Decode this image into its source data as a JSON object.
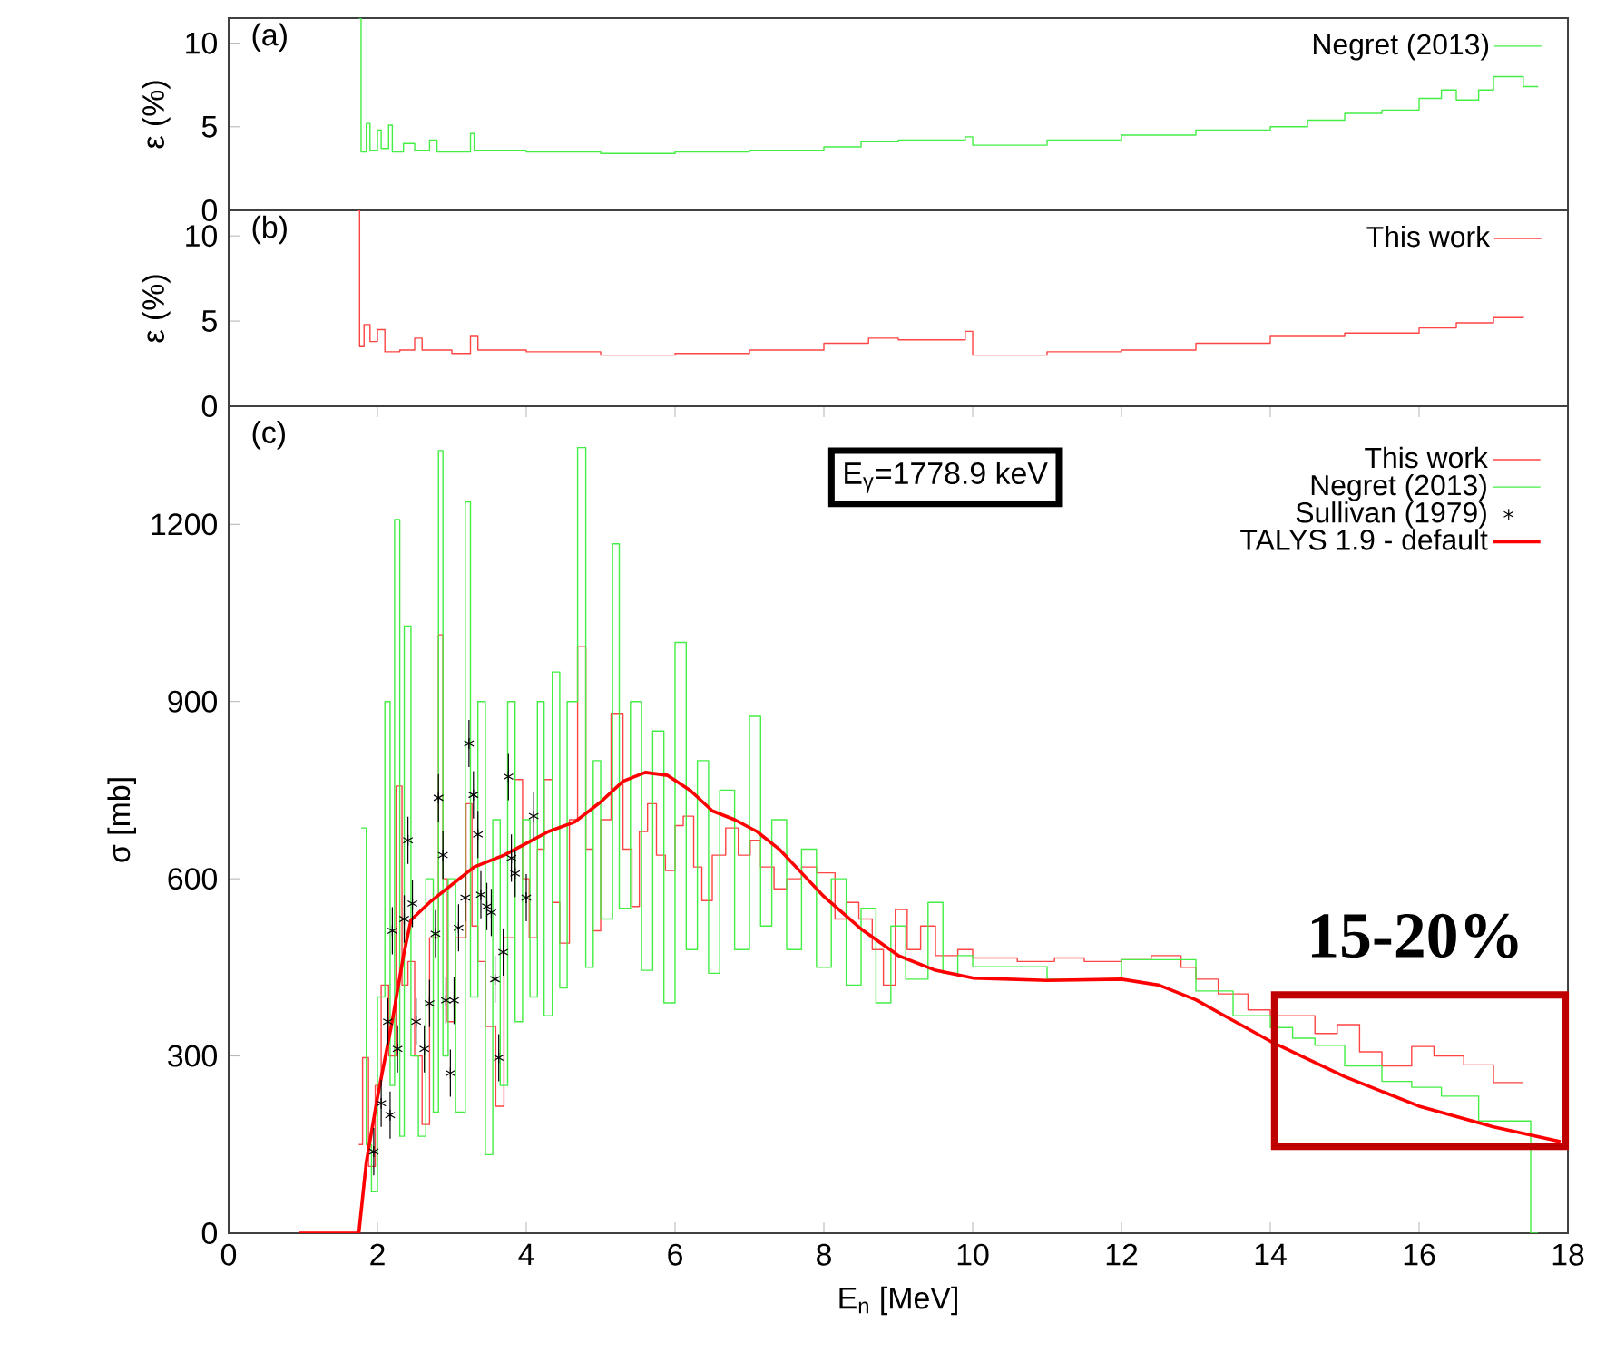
{
  "chart_data": [
    {
      "type": "step",
      "annotations": [
        "(a)"
      ],
      "ylabel": "ε (%)",
      "xlim": [
        0,
        18
      ],
      "ylim": [
        0,
        11.5
      ],
      "yticks": [
        0,
        5,
        10
      ],
      "tick_labels": "y",
      "legend": "top right",
      "series": [
        {
          "name": "Negret (2013)",
          "color": "#44ee44",
          "x": [
            1.75,
            1.78,
            1.85,
            1.9,
            2.0,
            2.05,
            2.15,
            2.2,
            2.35,
            2.5,
            2.7,
            2.8,
            3.0,
            3.25,
            3.3,
            4,
            4.5,
            5,
            6,
            7,
            8,
            8.5,
            9,
            9.9,
            10,
            11,
            12,
            13,
            14,
            14.5,
            15,
            15.5,
            16,
            16.3,
            16.5,
            16.8,
            17.0,
            17.4,
            17.6
          ],
          "values": [
            11.5,
            3.5,
            5.2,
            3.6,
            4.8,
            3.7,
            5.1,
            3.5,
            4.0,
            3.6,
            4.2,
            3.5,
            3.5,
            4.6,
            3.6,
            3.5,
            3.5,
            3.4,
            3.5,
            3.6,
            3.8,
            4.1,
            4.2,
            4.4,
            3.9,
            4.2,
            4.5,
            4.8,
            5.0,
            5.4,
            5.8,
            6.0,
            6.7,
            7.2,
            6.6,
            7.2,
            8.0,
            7.4,
            7.4
          ]
        }
      ]
    },
    {
      "type": "step",
      "annotations": [
        "(b)"
      ],
      "ylabel": "ε (%)",
      "xlim": [
        0,
        18
      ],
      "ylim": [
        0,
        11.5
      ],
      "yticks": [
        0,
        5,
        10
      ],
      "tick_labels": "y",
      "legend": "top right",
      "series": [
        {
          "name": "This work",
          "color": "#ff4444",
          "x": [
            1.72,
            1.76,
            1.82,
            1.9,
            2.0,
            2.1,
            2.3,
            2.5,
            2.6,
            3,
            3.25,
            3.35,
            4,
            5,
            6,
            7,
            8,
            8.6,
            9,
            9.9,
            10,
            11,
            12,
            13,
            14,
            15,
            16,
            16.5,
            17,
            17.4
          ],
          "values": [
            11.5,
            3.5,
            4.8,
            3.8,
            4.5,
            3.2,
            3.3,
            4.0,
            3.3,
            3.1,
            4.1,
            3.3,
            3.2,
            3.0,
            3.1,
            3.3,
            3.7,
            4.0,
            3.9,
            4.4,
            3.0,
            3.2,
            3.3,
            3.7,
            4.1,
            4.3,
            4.6,
            4.9,
            5.2,
            5.3
          ]
        }
      ]
    },
    {
      "type": "line",
      "annotations": [
        "(c)",
        "E$_{γ}$=1778.9 keV",
        "15-20%"
      ],
      "xlabel": "E$_{n}$ [MeV]",
      "ylabel": "σ [mb]",
      "xlim": [
        0,
        18
      ],
      "ylim": [
        0,
        1400
      ],
      "xticks": [
        0,
        2,
        4,
        6,
        8,
        10,
        12,
        14,
        16,
        18
      ],
      "yticks": [
        0,
        300,
        600,
        900,
        1200
      ],
      "legend": "top right",
      "series": [
        {
          "name": "This work",
          "type": "step",
          "color": "#ff4444",
          "x": [
            1.75,
            1.8,
            1.88,
            1.97,
            2.05,
            2.15,
            2.25,
            2.33,
            2.41,
            2.5,
            2.6,
            2.7,
            2.82,
            2.88,
            2.94,
            3.05,
            3.19,
            3.27,
            3.35,
            3.45,
            3.59,
            3.7,
            3.84,
            3.95,
            4.04,
            4.15,
            4.24,
            4.35,
            4.45,
            4.58,
            4.69,
            4.8,
            4.89,
            5.0,
            5.14,
            5.3,
            5.42,
            5.52,
            5.63,
            5.75,
            5.87,
            6.0,
            6.11,
            6.25,
            6.36,
            6.5,
            6.68,
            6.85,
            7.01,
            7.15,
            7.33,
            7.5,
            7.7,
            7.9,
            8.15,
            8.3,
            8.47,
            8.65,
            8.8,
            8.96,
            9.12,
            9.3,
            9.5,
            9.8,
            10.0,
            10.6,
            11.1,
            11.5,
            12.0,
            12.4,
            12.8,
            13.0,
            13.3,
            13.7,
            14.0,
            14.3,
            14.6,
            14.9,
            15.2,
            15.5,
            15.9,
            16.2,
            16.6,
            17.0,
            17.4
          ],
          "values": [
            150,
            297,
            113,
            250,
            420,
            300,
            757,
            420,
            460,
            300,
            184,
            500,
            1013,
            600,
            358,
            500,
            727,
            520,
            460,
            350,
            215,
            500,
            768,
            600,
            500,
            650,
            768,
            560,
            491,
            700,
            993,
            650,
            512,
            700,
            880,
            650,
            553,
            680,
            727,
            640,
            614,
            690,
            706,
            620,
            563,
            640,
            686,
            640,
            665,
            620,
            583,
            600,
            620,
            610,
            532,
            560,
            532,
            480,
            420,
            548,
            480,
            520,
            470,
            480,
            466,
            460,
            466,
            460,
            463,
            470,
            450,
            430,
            405,
            378,
            368,
            368,
            338,
            353,
            307,
            283,
            316,
            300,
            285,
            255,
            255
          ]
        },
        {
          "name": "Negret (2013)",
          "type": "step",
          "color": "#44ee44",
          "x": [
            1.78,
            1.85,
            1.92,
            2.0,
            2.1,
            2.17,
            2.23,
            2.3,
            2.36,
            2.45,
            2.55,
            2.65,
            2.75,
            2.82,
            2.88,
            2.95,
            3.05,
            3.18,
            3.25,
            3.35,
            3.45,
            3.55,
            3.65,
            3.75,
            3.85,
            3.95,
            4.05,
            4.15,
            4.24,
            4.35,
            4.45,
            4.55,
            4.69,
            4.8,
            4.9,
            5.0,
            5.16,
            5.25,
            5.4,
            5.55,
            5.7,
            5.85,
            6.0,
            6.15,
            6.3,
            6.45,
            6.6,
            6.8,
            7.0,
            7.15,
            7.3,
            7.5,
            7.7,
            7.9,
            8.1,
            8.3,
            8.5,
            8.7,
            8.9,
            9.1,
            9.4,
            9.6,
            9.8,
            10.0,
            11.0,
            12.0,
            12.5,
            13.0,
            13.5,
            14.0,
            14.3,
            14.6,
            15.0,
            15.5,
            15.9,
            16.3,
            16.8,
            17.5,
            17.6
          ],
          "values": [
            686,
            150,
            70,
            400,
            900,
            250,
            1208,
            164,
            1028,
            300,
            164,
            600,
            205,
            1325,
            300,
            600,
            205,
            1238,
            400,
            900,
            133,
            700,
            250,
            900,
            358,
            700,
            400,
            900,
            368,
            950,
            415,
            900,
            1330,
            450,
            800,
            532,
            1167,
            550,
            900,
            445,
            850,
            390,
            1000,
            480,
            800,
            440,
            750,
            480,
            875,
            520,
            700,
            480,
            650,
            450,
            600,
            420,
            550,
            390,
            520,
            430,
            560,
            440,
            470,
            451,
            430,
            463,
            463,
            410,
            368,
            348,
            330,
            318,
            283,
            257,
            247,
            232,
            190,
            0,
            0
          ]
        },
        {
          "name": "Sullivan (1979)",
          "type": "scatter",
          "marker": "cross",
          "color": "#000000",
          "x": [
            1.95,
            2.05,
            2.17,
            2.14,
            2.2,
            2.27,
            2.36,
            2.41,
            2.47,
            2.52,
            2.63,
            2.7,
            2.78,
            2.82,
            2.88,
            2.92,
            2.98,
            3.03,
            3.09,
            3.18,
            3.23,
            3.29,
            3.35,
            3.39,
            3.47,
            3.53,
            3.58,
            3.63,
            3.69,
            3.76,
            3.8,
            3.85,
            4.0,
            4.1
          ],
          "values": [
            138,
            220,
            200,
            358,
            512,
            312,
            532,
            665,
            558,
            358,
            312,
            389,
            507,
            737,
            640,
            394,
            271,
            394,
            517,
            568,
            829,
            742,
            675,
            573,
            553,
            543,
            430,
            297,
            476,
            773,
            635,
            609,
            568,
            706
          ],
          "errors": [
            40,
            40,
            40,
            40,
            40,
            40,
            40,
            40,
            40,
            40,
            40,
            40,
            40,
            40,
            40,
            40,
            40,
            40,
            40,
            40,
            40,
            40,
            40,
            40,
            40,
            40,
            40,
            40,
            40,
            40,
            40,
            40,
            40,
            40
          ]
        },
        {
          "name": "TALYS 1.9 - default",
          "type": "line",
          "color": "#ff0000",
          "x": [
            0.95,
            1.75,
            1.85,
            2.0,
            2.2,
            2.35,
            2.45,
            2.7,
            3.0,
            3.3,
            3.7,
            4.0,
            4.3,
            4.65,
            5.0,
            5.3,
            5.6,
            5.9,
            6.2,
            6.5,
            6.8,
            7.1,
            7.4,
            7.7,
            8.0,
            8.5,
            9.0,
            9.5,
            10.0,
            11.0,
            12.0,
            12.5,
            13.0,
            13.5,
            14.0,
            15.0,
            16.0,
            17.0,
            17.9
          ],
          "values": [
            0,
            0,
            120,
            230,
            360,
            470,
            530,
            560,
            590,
            620,
            640,
            660,
            680,
            696,
            730,
            765,
            780,
            775,
            750,
            715,
            700,
            680,
            650,
            610,
            570,
            515,
            470,
            445,
            432,
            428,
            430,
            420,
            395,
            360,
            325,
            265,
            215,
            180,
            155
          ]
        }
      ]
    }
  ]
}
